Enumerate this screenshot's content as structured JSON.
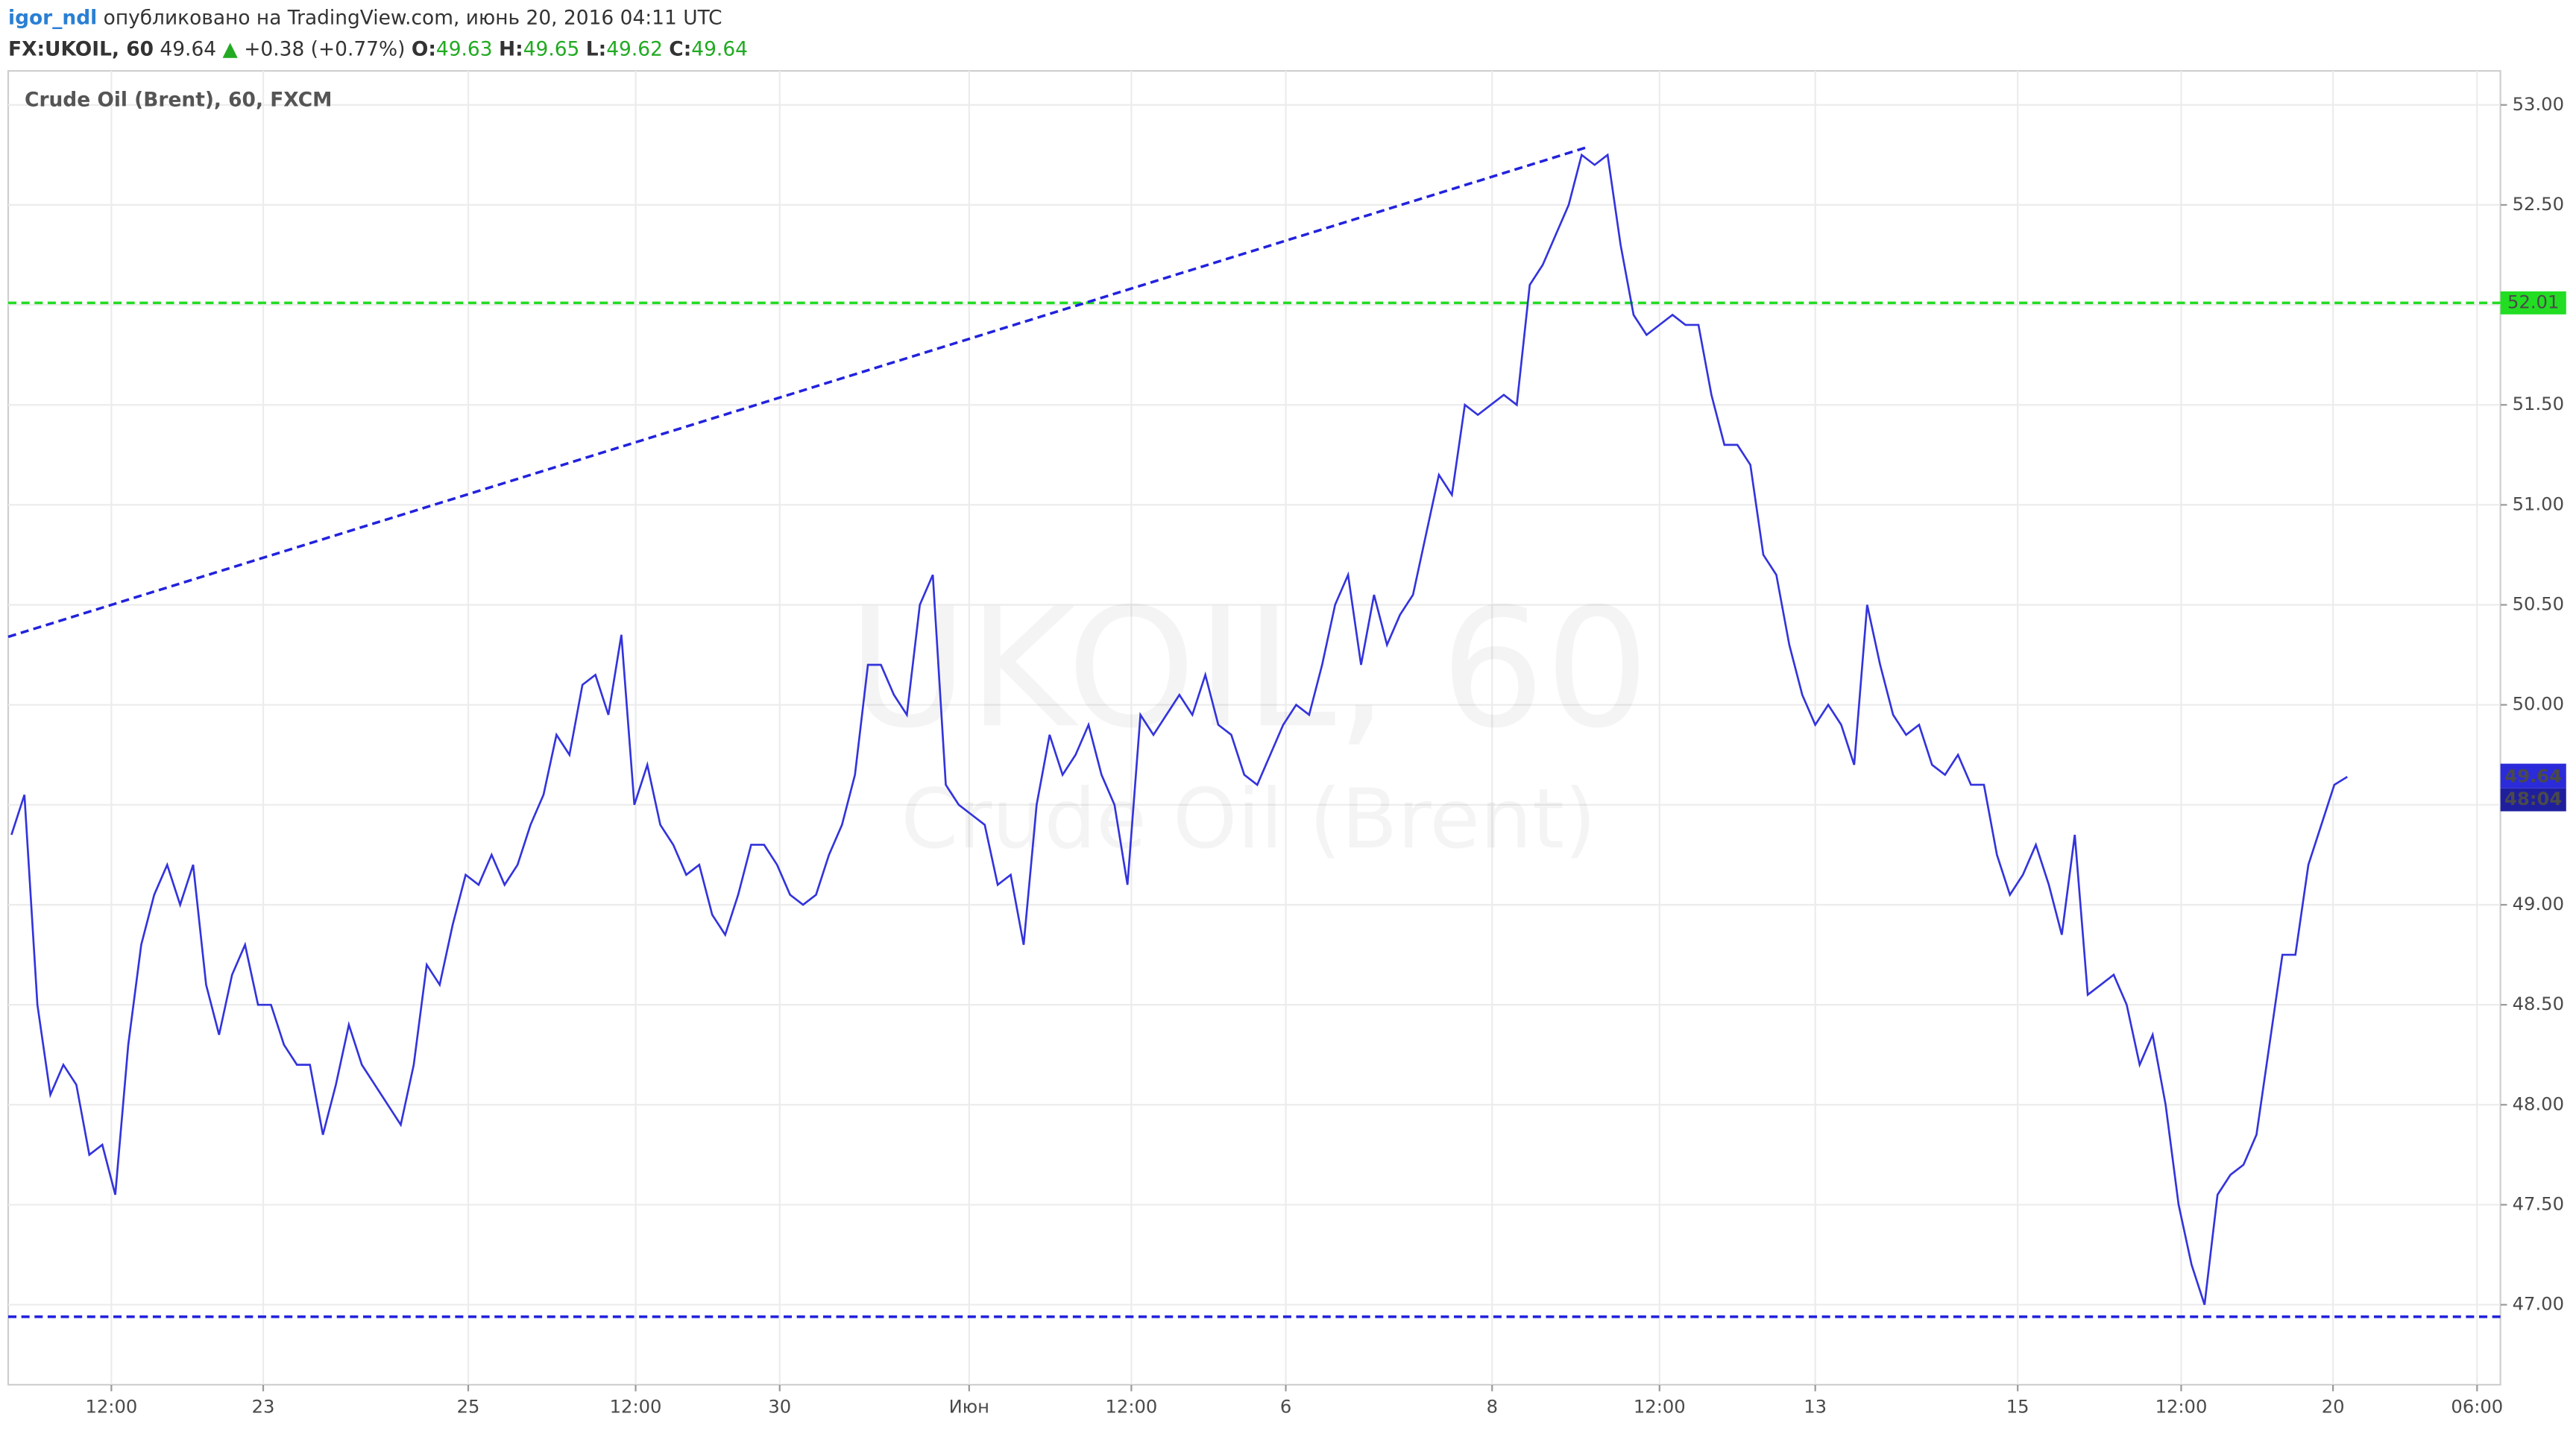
{
  "header": {
    "user": "igor_ndl",
    "published": "опубликовано на TradingView.com, июнь 20, 2016 04:11 UTC"
  },
  "quote": {
    "symbol": "FX:UKOIL, 60",
    "last": "49.64",
    "change": "+0.38 (+0.77%)",
    "o_label": "O:",
    "o": "49.63",
    "h_label": "H:",
    "h": "49.65",
    "l_label": "L:",
    "l": "49.62",
    "c_label": "C:",
    "c": "49.64"
  },
  "chart_data": {
    "type": "line",
    "title": "Crude Oil (Brent), 60, FXCM",
    "watermark": "UKOIL, 60",
    "watermark_sub": "Crude Oil (Brent)",
    "xlim": [
      -0.25,
      191.8
    ],
    "ylim": [
      46.6,
      53.17
    ],
    "xticks": [
      {
        "value": 7.7,
        "label": "12:00"
      },
      {
        "value": 19.4,
        "label": "23"
      },
      {
        "value": 35.2,
        "label": "25"
      },
      {
        "value": 48.1,
        "label": "12:00"
      },
      {
        "value": 59.2,
        "label": "30"
      },
      {
        "value": 73.8,
        "label": "Июн"
      },
      {
        "value": 86.3,
        "label": "12:00"
      },
      {
        "value": 98.2,
        "label": "6"
      },
      {
        "value": 114.1,
        "label": "8"
      },
      {
        "value": 127.0,
        "label": "12:00"
      },
      {
        "value": 139.0,
        "label": "13"
      },
      {
        "value": 154.6,
        "label": "15"
      },
      {
        "value": 167.2,
        "label": "12:00"
      },
      {
        "value": 178.9,
        "label": "20"
      },
      {
        "value": 190.0,
        "label": "06:00"
      }
    ],
    "yticks": [
      {
        "value": 47,
        "label": "47.00"
      },
      {
        "value": 47.5,
        "label": "47.50"
      },
      {
        "value": 48,
        "label": "48.00"
      },
      {
        "value": 48.5,
        "label": "48.50"
      },
      {
        "value": 49,
        "label": "49.00"
      },
      {
        "value": 49.5,
        "label": "49.50"
      },
      {
        "value": 50,
        "label": "50.00"
      },
      {
        "value": 50.5,
        "label": "50.50"
      },
      {
        "value": 51,
        "label": "51.00"
      },
      {
        "value": 51.5,
        "label": "51.50"
      },
      {
        "value": 52,
        "label": "52.00"
      },
      {
        "value": 52.5,
        "label": "52.50"
      },
      {
        "value": 53,
        "label": "53.00"
      }
    ],
    "grid": true,
    "series": [
      {
        "color": "#3333dd",
        "x": [
          0,
          1,
          2,
          3,
          4,
          5,
          6,
          7,
          8,
          9,
          10,
          11,
          12,
          13,
          14,
          15,
          16,
          17,
          18,
          19,
          20,
          21,
          22,
          23,
          24,
          25,
          26,
          27,
          28,
          29,
          30,
          31,
          32,
          33,
          34,
          35,
          36,
          37,
          38,
          39,
          40,
          41,
          42,
          43,
          44,
          45,
          46,
          47,
          48,
          49,
          50,
          51,
          52,
          53,
          54,
          55,
          56,
          57,
          58,
          59,
          60,
          61,
          62,
          63,
          64,
          65,
          66,
          67,
          68,
          69,
          70,
          71,
          72,
          73,
          74,
          75,
          76,
          77,
          78,
          79,
          80,
          81,
          82,
          83,
          84,
          85,
          86,
          87,
          88,
          89,
          90,
          91,
          92,
          93,
          94,
          95,
          96,
          97,
          98,
          99,
          100,
          101,
          102,
          103,
          104,
          105,
          106,
          107,
          108,
          109,
          110,
          111,
          112,
          113,
          114,
          115,
          116,
          117,
          118,
          119,
          120,
          121,
          122,
          123,
          124,
          125,
          126,
          127,
          128,
          129,
          130,
          131,
          132,
          133,
          134,
          135,
          136,
          137,
          138,
          139,
          140,
          141,
          142,
          143,
          144,
          145,
          146,
          147,
          148,
          149,
          150,
          151,
          152,
          153,
          154,
          155,
          156,
          157,
          158,
          159,
          160,
          161,
          162,
          163,
          164,
          165,
          166,
          167,
          168,
          169,
          170,
          171,
          172,
          173,
          174,
          175,
          176,
          177,
          178,
          179,
          180
        ],
        "values": [
          49.35,
          49.55,
          48.5,
          48.05,
          48.2,
          48.1,
          47.75,
          47.8,
          47.55,
          48.3,
          48.8,
          49.05,
          49.2,
          49.0,
          49.2,
          48.6,
          48.35,
          48.65,
          48.8,
          48.5,
          48.5,
          48.3,
          48.2,
          48.2,
          47.85,
          48.1,
          48.4,
          48.2,
          48.1,
          48.0,
          47.9,
          48.2,
          48.7,
          48.6,
          48.9,
          49.15,
          49.1,
          49.25,
          49.1,
          49.2,
          49.4,
          49.55,
          49.85,
          49.75,
          50.1,
          50.15,
          49.95,
          50.35,
          49.5,
          49.7,
          49.4,
          49.3,
          49.15,
          49.2,
          48.95,
          48.85,
          49.05,
          49.3,
          49.3,
          49.2,
          49.05,
          49.0,
          49.05,
          49.25,
          49.4,
          49.65,
          50.2,
          50.2,
          50.05,
          49.95,
          50.5,
          50.65,
          49.6,
          49.5,
          49.45,
          49.4,
          49.1,
          49.15,
          48.8,
          49.5,
          49.85,
          49.65,
          49.75,
          49.9,
          49.65,
          49.5,
          49.1,
          49.95,
          49.85,
          49.95,
          50.05,
          49.95,
          50.15,
          49.9,
          49.85,
          49.65,
          49.6,
          49.75,
          49.9,
          50.0,
          49.95,
          50.2,
          50.5,
          50.65,
          50.2,
          50.55,
          50.3,
          50.45,
          50.55,
          50.85,
          51.15,
          51.05,
          51.5,
          51.45,
          51.5,
          51.55,
          51.5,
          52.1,
          52.2,
          52.35,
          52.5,
          52.75,
          52.7,
          52.75,
          52.3,
          51.95,
          51.85,
          51.9,
          51.95,
          51.9,
          51.9,
          51.55,
          51.3,
          51.3,
          51.2,
          50.75,
          50.65,
          50.3,
          50.05,
          49.9,
          50.0,
          49.9,
          49.7,
          50.5,
          50.2,
          49.95,
          49.85,
          49.9,
          49.7,
          49.65,
          49.75,
          49.6,
          49.6,
          49.25,
          49.05,
          49.15,
          49.3,
          49.1,
          48.85,
          49.35,
          48.55,
          48.6,
          48.65,
          48.5,
          48.2,
          48.35,
          48.0,
          47.5,
          47.2,
          47.0,
          47.55,
          47.65,
          47.7,
          47.85,
          48.3,
          48.75,
          48.75,
          49.2,
          49.4,
          49.6,
          49.64
        ]
      }
    ],
    "last_price": {
      "value": 49.64,
      "label": "49.64",
      "countdown": "48:04"
    },
    "levels": [
      {
        "value": 52.01,
        "label": "52.01",
        "color": "#22dd22"
      },
      {
        "value": 46.94,
        "color": "#2222dd"
      }
    ],
    "trendline": {
      "x": [
        -0.25,
        121.5
      ],
      "y": [
        50.34,
        52.79
      ],
      "color": "#2222dd"
    }
  }
}
